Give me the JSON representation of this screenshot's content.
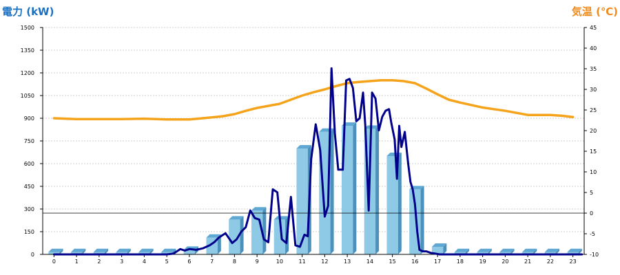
{
  "chart_data": {
    "type": "bar+line",
    "left_axis": {
      "title": "電力 (kW)",
      "color": "#1b6fbf",
      "range": [
        0,
        1500
      ],
      "ticks": [
        "1500",
        "1350",
        "1200",
        "1050",
        "900",
        "750",
        "600",
        "450",
        "300",
        "150",
        "0"
      ]
    },
    "right_axis": {
      "title": "気温 (℃)",
      "color": "#f08a1c",
      "range": [
        -10,
        45
      ],
      "ticks": [
        "45",
        "40",
        "35",
        "30",
        "25",
        "20",
        "15",
        "10",
        "5",
        "0",
        "-5",
        "-10"
      ]
    },
    "x_categories": [
      "0",
      "1",
      "2",
      "3",
      "4",
      "5",
      "6",
      "7",
      "8",
      "9",
      "10",
      "11",
      "12",
      "13",
      "14",
      "15",
      "16",
      "17",
      "18",
      "19",
      "20",
      "21",
      "22",
      "23"
    ],
    "grid": true,
    "zero_reference_line": true,
    "bar_series": {
      "name": "",
      "unit": "kW",
      "color": "#8ecae6",
      "values": [
        15,
        15,
        15,
        15,
        15,
        15,
        30,
        110,
        230,
        290,
        230,
        700,
        810,
        850,
        830,
        650,
        430,
        50,
        15,
        15,
        15,
        15,
        15,
        15
      ]
    },
    "power_line": {
      "name": "",
      "unit": "kW",
      "color": "#00008b",
      "x": [
        0,
        0.5,
        1,
        1.5,
        2,
        2.5,
        3,
        3.5,
        4,
        4.5,
        5,
        5.3,
        5.6,
        5.8,
        6,
        6.3,
        6.6,
        6.9,
        7.1,
        7.3,
        7.6,
        7.9,
        8.1,
        8.3,
        8.5,
        8.7,
        8.9,
        9.1,
        9.3,
        9.5,
        9.7,
        9.9,
        10.1,
        10.3,
        10.5,
        10.7,
        10.9,
        11.1,
        11.25,
        11.4,
        11.6,
        11.8,
        12.0,
        12.15,
        12.3,
        12.45,
        12.6,
        12.8,
        12.95,
        13.1,
        13.25,
        13.4,
        13.55,
        13.7,
        13.8,
        13.95,
        14.1,
        14.25,
        14.4,
        14.55,
        14.7,
        14.85,
        14.95,
        15.1,
        15.2,
        15.3,
        15.4,
        15.55,
        15.7,
        15.8,
        15.9,
        16.0,
        16.1,
        16.2,
        16.35,
        16.5,
        16.7,
        16.9,
        17.1,
        17.3,
        17.5,
        17.8,
        18.2,
        19,
        20,
        21,
        22,
        23,
        23.4
      ],
      "y": [
        0,
        0,
        0,
        0,
        0,
        0,
        0,
        0,
        0,
        0,
        0,
        5,
        35,
        25,
        35,
        30,
        40,
        60,
        80,
        110,
        140,
        75,
        100,
        150,
        180,
        290,
        240,
        230,
        100,
        80,
        430,
        410,
        100,
        75,
        380,
        60,
        50,
        130,
        120,
        630,
        860,
        690,
        250,
        320,
        1230,
        800,
        560,
        560,
        1150,
        1160,
        1100,
        880,
        900,
        1070,
        850,
        290,
        1070,
        1030,
        820,
        910,
        950,
        960,
        870,
        760,
        500,
        850,
        710,
        810,
        600,
        480,
        430,
        330,
        150,
        30,
        20,
        20,
        10,
        5,
        0,
        0,
        0,
        0,
        0,
        0,
        0,
        0,
        0,
        0,
        0
      ]
    },
    "temperature_line": {
      "name": "",
      "unit": "℃",
      "color": "#f5a31a",
      "x": [
        0,
        1,
        2,
        3,
        4,
        5,
        6,
        7,
        7.5,
        8,
        8.5,
        9,
        9.5,
        10,
        10.5,
        11,
        11.5,
        12,
        12.5,
        13,
        13.5,
        14,
        14.5,
        15,
        15.5,
        16,
        16.5,
        17,
        17.5,
        18,
        18.5,
        19,
        19.5,
        20,
        20.5,
        21,
        21.5,
        22,
        22.5,
        23
      ],
      "y": [
        23,
        22.8,
        22.8,
        22.8,
        22.9,
        22.7,
        22.7,
        23.2,
        23.5,
        24,
        24.8,
        25.5,
        26,
        26.5,
        27.5,
        28.5,
        29.3,
        30,
        30.8,
        31.5,
        31.8,
        32,
        32.2,
        32.2,
        32,
        31.5,
        30.2,
        28.8,
        27.5,
        26.8,
        26.2,
        25.6,
        25.2,
        24.8,
        24.3,
        23.8,
        23.8,
        23.8,
        23.6,
        23.3
      ]
    }
  }
}
